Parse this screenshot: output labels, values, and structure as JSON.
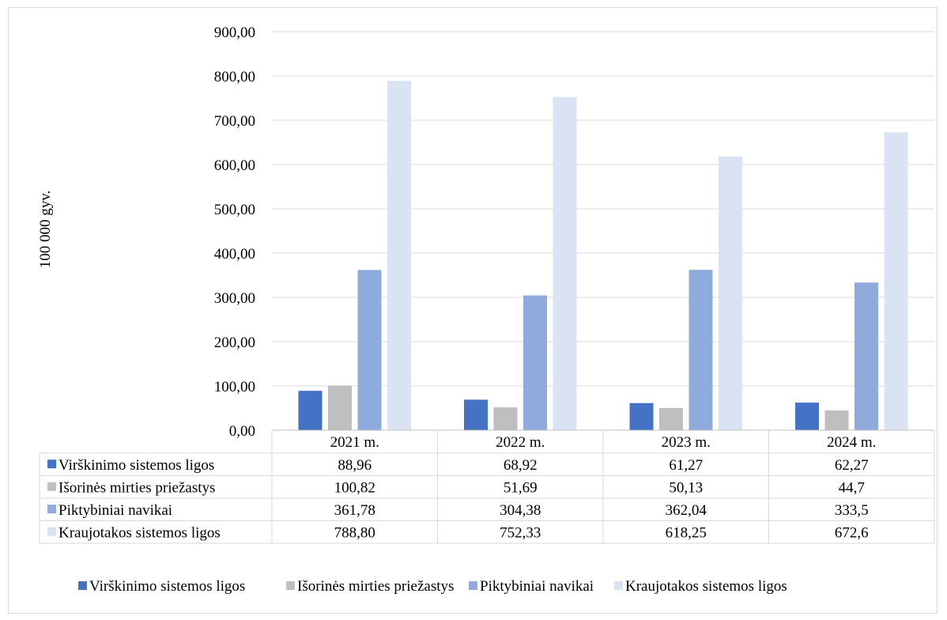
{
  "chart_data": {
    "type": "bar",
    "ylabel": "100 000 gyv.",
    "ylim": [
      0,
      900
    ],
    "yticks": [
      "0,00",
      "100,00",
      "200,00",
      "300,00",
      "400,00",
      "500,00",
      "600,00",
      "700,00",
      "800,00",
      "900,00"
    ],
    "categories": [
      "2021 m.",
      "2022 m.",
      "2023 m.",
      "2024 m."
    ],
    "grid": true,
    "legend_position": "bottom",
    "series": [
      {
        "name": "Virškinimo sistemos ligos",
        "color": "#4472c4",
        "values": [
          88.96,
          68.92,
          61.27,
          62.27
        ],
        "labels": [
          "88,96",
          "68,92",
          "61,27",
          "62,27"
        ]
      },
      {
        "name": "Išorinės mirties priežastys",
        "color": "#bfbfbf",
        "values": [
          100.82,
          51.69,
          50.13,
          44.7
        ],
        "labels": [
          "100,82",
          "51,69",
          "50,13",
          "44,7"
        ]
      },
      {
        "name": "Piktybiniai navikai",
        "color": "#8faadc",
        "values": [
          361.78,
          304.38,
          362.04,
          333.5
        ],
        "labels": [
          "361,78",
          "304,38",
          "362,04",
          "333,5"
        ]
      },
      {
        "name": "Kraujotakos sistemos ligos",
        "color": "#dae3f3",
        "values": [
          788.8,
          752.33,
          618.25,
          672.6
        ],
        "labels": [
          "788,80",
          "752,33",
          "618,25",
          "672,6"
        ]
      }
    ]
  }
}
